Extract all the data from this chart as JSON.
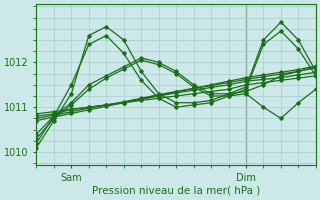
{
  "xlabel": "Pression niveau de la mer( hPa )",
  "bg_color": "#cce8e8",
  "grid_color": "#aacccc",
  "line_color": "#1a6e1a",
  "ylim": [
    1009.7,
    1013.3
  ],
  "xlim": [
    0,
    48
  ],
  "yticks": [
    1010,
    1011,
    1012
  ],
  "xtick_positions": [
    6,
    36
  ],
  "xtick_labels": [
    "Sam",
    "Dim"
  ],
  "vline_x": 36,
  "figsize": [
    3.2,
    2.0
  ],
  "dpi": 100,
  "series": [
    {
      "x": [
        0,
        3,
        6,
        9,
        12,
        15,
        18,
        21,
        24,
        27,
        30,
        33,
        36,
        39,
        42,
        45,
        48
      ],
      "y": [
        1010.85,
        1010.9,
        1010.95,
        1011.0,
        1011.05,
        1011.1,
        1011.15,
        1011.2,
        1011.25,
        1011.3,
        1011.35,
        1011.4,
        1011.5,
        1011.55,
        1011.6,
        1011.65,
        1011.7
      ],
      "lw": 0.9,
      "marker": "D",
      "ms": 1.8
    },
    {
      "x": [
        0,
        3,
        6,
        9,
        12,
        15,
        18,
        21,
        24,
        27,
        30,
        33,
        36,
        39,
        42,
        45,
        48
      ],
      "y": [
        1010.8,
        1010.85,
        1010.95,
        1011.0,
        1011.05,
        1011.1,
        1011.18,
        1011.25,
        1011.32,
        1011.38,
        1011.44,
        1011.5,
        1011.58,
        1011.62,
        1011.66,
        1011.72,
        1011.78
      ],
      "lw": 0.9,
      "marker": "D",
      "ms": 1.8
    },
    {
      "x": [
        0,
        3,
        6,
        9,
        12,
        15,
        18,
        21,
        24,
        27,
        30,
        33,
        36,
        39,
        42,
        45,
        48
      ],
      "y": [
        1010.75,
        1010.82,
        1010.9,
        1010.98,
        1011.05,
        1011.12,
        1011.2,
        1011.28,
        1011.35,
        1011.42,
        1011.48,
        1011.55,
        1011.62,
        1011.68,
        1011.74,
        1011.8,
        1011.88
      ],
      "lw": 0.9,
      "marker": "D",
      "ms": 1.8
    },
    {
      "x": [
        0,
        3,
        6,
        9,
        12,
        15,
        18,
        21,
        24,
        27,
        30,
        33,
        36,
        39,
        42,
        45,
        48
      ],
      "y": [
        1010.7,
        1010.78,
        1010.86,
        1010.94,
        1011.02,
        1011.1,
        1011.18,
        1011.26,
        1011.34,
        1011.42,
        1011.5,
        1011.58,
        1011.66,
        1011.72,
        1011.78,
        1011.84,
        1011.92
      ],
      "lw": 0.9,
      "marker": "D",
      "ms": 1.8
    },
    {
      "x": [
        0,
        3,
        6,
        9,
        12,
        15,
        18,
        21,
        24,
        27,
        30,
        33,
        36,
        39,
        42,
        45,
        48
      ],
      "y": [
        1010.1,
        1010.7,
        1011.3,
        1012.6,
        1012.8,
        1012.5,
        1011.8,
        1011.3,
        1011.1,
        1011.1,
        1011.15,
        1011.3,
        1011.45,
        1012.5,
        1012.9,
        1012.5,
        1011.8
      ],
      "lw": 0.9,
      "marker": "D",
      "ms": 1.8
    },
    {
      "x": [
        0,
        3,
        6,
        9,
        12,
        15,
        18,
        21,
        24,
        27,
        30,
        33,
        36,
        39,
        42,
        45,
        48
      ],
      "y": [
        1010.2,
        1010.8,
        1011.5,
        1012.4,
        1012.6,
        1012.2,
        1011.6,
        1011.2,
        1011.0,
        1011.05,
        1011.1,
        1011.25,
        1011.4,
        1012.4,
        1012.7,
        1012.3,
        1011.7
      ],
      "lw": 0.9,
      "marker": "D",
      "ms": 1.8
    },
    {
      "x": [
        0,
        3,
        6,
        9,
        12,
        15,
        18,
        21,
        24,
        27,
        30,
        33,
        36,
        39,
        42,
        45,
        48
      ],
      "y": [
        1010.4,
        1010.8,
        1011.1,
        1011.5,
        1011.7,
        1011.9,
        1012.1,
        1012.0,
        1011.8,
        1011.5,
        1011.3,
        1011.3,
        1011.35,
        1011.5,
        1011.7,
        1011.8,
        1011.9
      ],
      "lw": 0.9,
      "marker": "D",
      "ms": 1.8
    },
    {
      "x": [
        0,
        3,
        6,
        9,
        12,
        15,
        18,
        21,
        24,
        27,
        30,
        33,
        36,
        39,
        42,
        45,
        48
      ],
      "y": [
        1010.3,
        1010.75,
        1011.05,
        1011.4,
        1011.65,
        1011.85,
        1012.05,
        1011.95,
        1011.75,
        1011.45,
        1011.25,
        1011.25,
        1011.3,
        1011.0,
        1010.75,
        1011.1,
        1011.4
      ],
      "lw": 0.9,
      "marker": "D",
      "ms": 1.8
    }
  ]
}
